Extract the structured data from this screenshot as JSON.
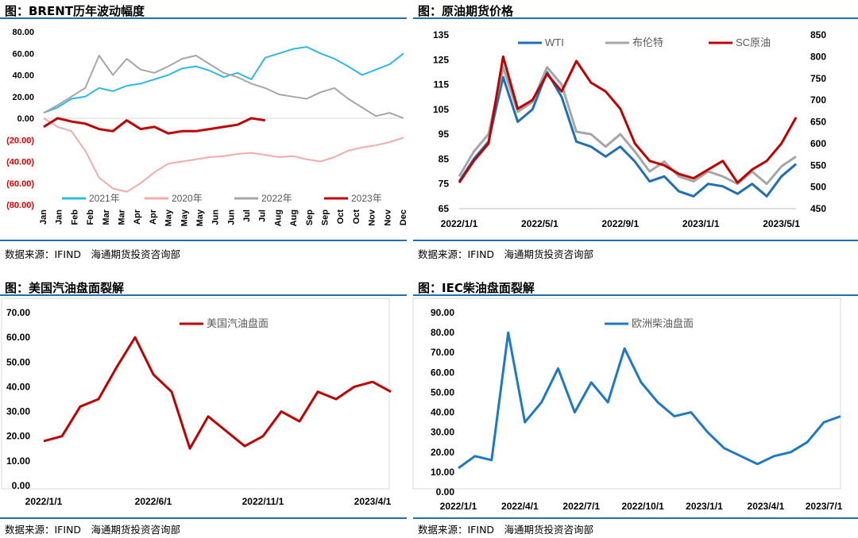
{
  "colors": {
    "accent_bar": "#1f6fb5",
    "red": "#c00000",
    "blue": "#1e78c8",
    "pink": "#f4aaaa",
    "gray": "#a6a6a6",
    "sky": "#2eb8e6",
    "wti_blue": "#1f6fb5",
    "neg_red": "#e00000"
  },
  "panels": [
    {
      "title": "图：BRENT历年波动幅度",
      "source": "数据来源：IFIND　海通期货投资咨询部"
    },
    {
      "title": "图：原油期货价格",
      "source": "数据来源：IFIND　海通期货投资咨询部"
    },
    {
      "title": "图：美国汽油盘面裂解",
      "source": "数据来源：IFIND　海通期货投资咨询部"
    },
    {
      "title": "图：IEC柴油盘面裂解",
      "source": "数据来源：IFIND　海通期货投资咨询部"
    }
  ],
  "chart_data": [
    {
      "type": "line",
      "title": "图：BRENT历年波动幅度",
      "x_ticks": [
        "Jan",
        "Jan",
        "Feb",
        "Feb",
        "Mar",
        "Mar",
        "Apr",
        "Apr",
        "May",
        "May",
        "May",
        "Jun",
        "Jun",
        "Jul",
        "Jul",
        "Aug",
        "Aug",
        "Sep",
        "Sep",
        "Oct",
        "Oct",
        "Nov",
        "Nov",
        "Dec"
      ],
      "y_ticks": [
        "80.00",
        "60.00",
        "40.00",
        "20.00",
        "0.00",
        "(20.00)",
        "(40.00)",
        "(60.00)",
        "(80.00)"
      ],
      "ylim": [
        -80,
        80
      ],
      "grid": false,
      "legend_position": "bottom",
      "series": [
        {
          "name": "2021年",
          "x": [
            0,
            2,
            4,
            6,
            8,
            10,
            12,
            14,
            16,
            18,
            20,
            22,
            24,
            26,
            28,
            30,
            32,
            34,
            36,
            38,
            40,
            42,
            44,
            46,
            48,
            50,
            52
          ],
          "values": [
            5,
            10,
            18,
            20,
            28,
            25,
            30,
            32,
            36,
            40,
            46,
            48,
            44,
            38,
            42,
            36,
            56,
            60,
            64,
            66,
            60,
            55,
            48,
            40,
            45,
            50,
            60
          ]
        },
        {
          "name": "2020年",
          "x": [
            0,
            2,
            4,
            6,
            8,
            10,
            12,
            14,
            16,
            18,
            20,
            22,
            24,
            26,
            28,
            30,
            32,
            34,
            36,
            38,
            40,
            42,
            44,
            46,
            48,
            50,
            52
          ],
          "values": [
            0,
            -8,
            -12,
            -30,
            -55,
            -65,
            -68,
            -60,
            -50,
            -42,
            -40,
            -38,
            -36,
            -35,
            -33,
            -32,
            -34,
            -36,
            -35,
            -38,
            -40,
            -36,
            -30,
            -27,
            -25,
            -22,
            -18
          ]
        },
        {
          "name": "2022年",
          "x": [
            0,
            2,
            4,
            6,
            8,
            10,
            12,
            14,
            16,
            18,
            20,
            22,
            24,
            26,
            28,
            30,
            32,
            34,
            36,
            38,
            40,
            42,
            44,
            46,
            48,
            50,
            52
          ],
          "values": [
            5,
            12,
            20,
            28,
            58,
            40,
            55,
            45,
            42,
            48,
            55,
            58,
            50,
            42,
            38,
            32,
            28,
            22,
            20,
            18,
            24,
            28,
            18,
            10,
            2,
            5,
            0
          ]
        },
        {
          "name": "2023年",
          "x": [
            0,
            2,
            4,
            6,
            8,
            10,
            12,
            14,
            16,
            18,
            20,
            22,
            24,
            26,
            28,
            30,
            32
          ],
          "values": [
            -8,
            0,
            -3,
            -5,
            -10,
            -12,
            -2,
            -10,
            -8,
            -14,
            -12,
            -12,
            -10,
            -8,
            -6,
            0,
            -2
          ]
        }
      ]
    },
    {
      "type": "line",
      "title": "图：原油期货价格",
      "x_ticks": [
        "2022/1/1",
        "2022/5/1",
        "2022/9/1",
        "2023/1/1",
        "2023/5/1"
      ],
      "y_left_ticks": [
        "135",
        "125",
        "115",
        "105",
        "95",
        "85",
        "75",
        "65"
      ],
      "y_right_ticks": [
        "850",
        "800",
        "750",
        "700",
        "650",
        "600",
        "550",
        "500",
        "450"
      ],
      "ylim_left": [
        65,
        135
      ],
      "ylim_right": [
        450,
        850
      ],
      "grid": false,
      "legend_position": "top",
      "series": [
        {
          "name": "WTI",
          "axis": "left",
          "x": [
            0,
            1,
            2,
            3,
            4,
            5,
            6,
            7,
            8,
            9,
            10,
            11,
            12,
            13,
            14,
            15,
            16,
            17,
            18,
            19,
            20,
            21,
            22,
            23
          ],
          "values": [
            76,
            85,
            92,
            118,
            100,
            105,
            120,
            110,
            92,
            90,
            86,
            90,
            84,
            76,
            78,
            72,
            70,
            75,
            74,
            71,
            75,
            70,
            78,
            83
          ]
        },
        {
          "name": "布伦特",
          "axis": "left",
          "x": [
            0,
            1,
            2,
            3,
            4,
            5,
            6,
            7,
            8,
            9,
            10,
            11,
            12,
            13,
            14,
            15,
            16,
            17,
            18,
            19,
            20,
            21,
            22,
            23
          ],
          "values": [
            78,
            88,
            95,
            122,
            104,
            108,
            122,
            115,
            96,
            95,
            90,
            95,
            88,
            80,
            84,
            78,
            76,
            80,
            78,
            75,
            80,
            75,
            82,
            86
          ]
        },
        {
          "name": "SC原油",
          "axis": "right",
          "x": [
            0,
            1,
            2,
            3,
            4,
            5,
            6,
            7,
            8,
            9,
            10,
            11,
            12,
            13,
            14,
            15,
            16,
            17,
            18,
            19,
            20,
            21,
            22,
            23
          ],
          "values": [
            510,
            560,
            600,
            800,
            680,
            700,
            760,
            720,
            790,
            740,
            720,
            680,
            600,
            560,
            550,
            530,
            520,
            540,
            560,
            510,
            540,
            560,
            600,
            660
          ]
        }
      ]
    },
    {
      "type": "line",
      "title": "图：美国汽油盘面裂解",
      "x_ticks": [
        "2022/1/1",
        "2022/6/1",
        "2022/11/1",
        "2023/4/1"
      ],
      "y_ticks": [
        "70.00",
        "60.00",
        "50.00",
        "40.00",
        "30.00",
        "20.00",
        "10.00",
        "0.00"
      ],
      "ylim": [
        0,
        70
      ],
      "grid": false,
      "legend_position": "top",
      "series": [
        {
          "name": "美国汽油盘面",
          "x": [
            0,
            1,
            2,
            3,
            4,
            5,
            6,
            7,
            8,
            9,
            10,
            11,
            12,
            13,
            14,
            15,
            16,
            17,
            18,
            19
          ],
          "values": [
            18,
            20,
            32,
            35,
            48,
            60,
            45,
            38,
            15,
            28,
            22,
            16,
            20,
            30,
            26,
            38,
            35,
            40,
            42,
            38
          ]
        }
      ]
    },
    {
      "type": "line",
      "title": "图：IEC柴油盘面裂解",
      "x_ticks": [
        "2022/1/1",
        "2022/4/1",
        "2022/7/1",
        "2022/10/1",
        "2023/1/1",
        "2023/4/1",
        "2023/7/1"
      ],
      "y_ticks": [
        "90.00",
        "80.00",
        "70.00",
        "60.00",
        "50.00",
        "40.00",
        "30.00",
        "20.00",
        "10.00",
        "0.00"
      ],
      "ylim": [
        0,
        90
      ],
      "grid": false,
      "legend_position": "top",
      "series": [
        {
          "name": "欧洲柴油盘面",
          "x": [
            0,
            1,
            2,
            3,
            4,
            5,
            6,
            7,
            8,
            9,
            10,
            11,
            12,
            13,
            14,
            15,
            16,
            17,
            18,
            19,
            20,
            21,
            22,
            23
          ],
          "values": [
            12,
            18,
            16,
            80,
            35,
            45,
            62,
            40,
            55,
            45,
            72,
            55,
            45,
            38,
            40,
            30,
            22,
            18,
            14,
            18,
            20,
            25,
            35,
            38
          ]
        }
      ]
    }
  ]
}
